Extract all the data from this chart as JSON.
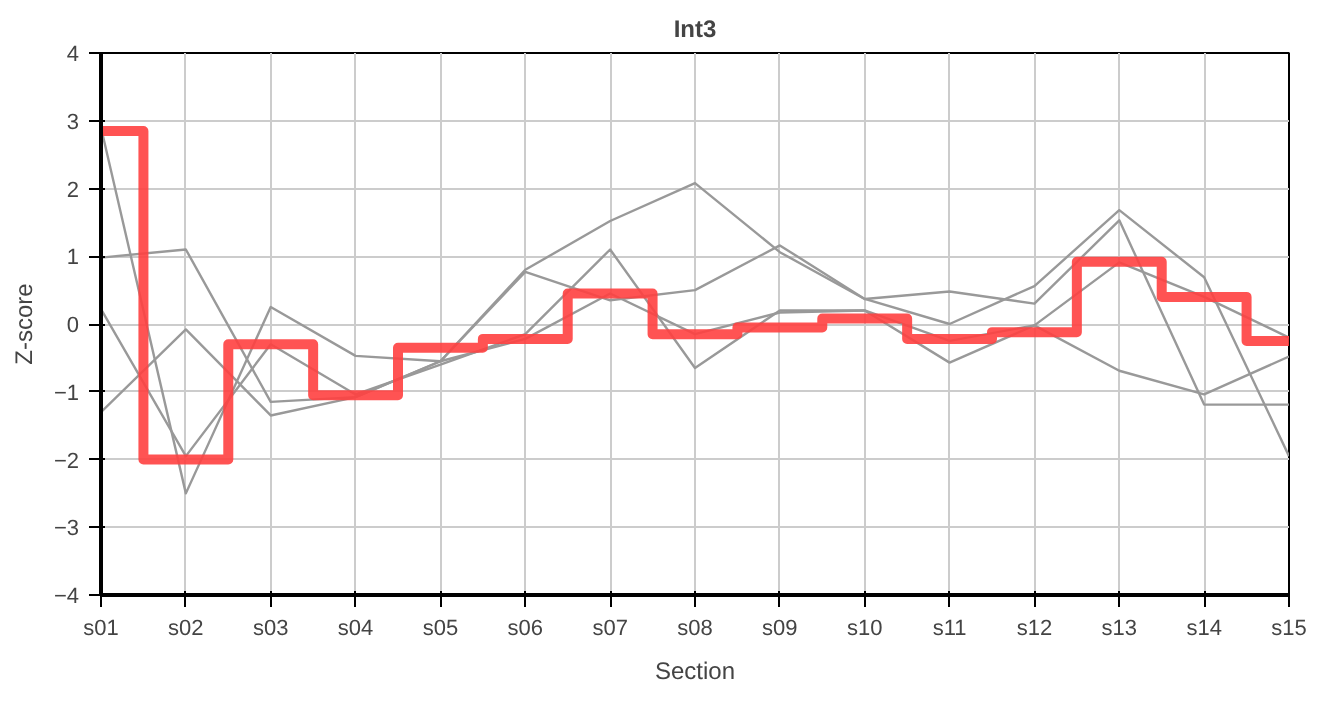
{
  "chart_data": {
    "type": "line",
    "title": "Int3",
    "xlabel": "Section",
    "ylabel": "Z-score",
    "categories": [
      "s01",
      "s02",
      "s03",
      "s04",
      "s05",
      "s06",
      "s07",
      "s08",
      "s09",
      "s10",
      "s11",
      "s12",
      "s13",
      "s14",
      "s15"
    ],
    "ylim": [
      -4,
      4
    ],
    "yticks": [
      -4,
      -3,
      -2,
      -1,
      0,
      1,
      2,
      3,
      4
    ],
    "grid": true,
    "series": [
      {
        "color": "#999999",
        "values": [
          0.98,
          1.1,
          -1.15,
          -1.08,
          -0.55,
          0.8,
          1.52,
          2.08,
          1.06,
          0.37,
          0.0,
          0.56,
          1.68,
          0.69,
          -1.95
        ]
      },
      {
        "color": "#999999",
        "values": [
          2.9,
          -2.5,
          0.25,
          -0.47,
          -0.55,
          0.77,
          0.35,
          0.5,
          1.16,
          0.37,
          0.48,
          0.3,
          1.53,
          -1.19,
          -1.19
        ]
      },
      {
        "color": "#999999",
        "values": [
          0.22,
          -1.95,
          -0.3,
          -1.04,
          -0.6,
          -0.15,
          1.1,
          -0.65,
          0.2,
          0.2,
          -0.57,
          -0.02,
          0.91,
          0.4,
          -0.2
        ]
      },
      {
        "color": "#999999",
        "values": [
          -1.3,
          -0.08,
          -1.35,
          -1.08,
          -0.55,
          -0.22,
          0.45,
          -0.15,
          0.17,
          0.2,
          -0.25,
          -0.02,
          -0.69,
          -1.04,
          -0.48
        ]
      },
      {
        "type": "step",
        "color": "#ff4040",
        "values": [
          2.85,
          -2.0,
          -0.3,
          -1.05,
          -0.35,
          -0.22,
          0.45,
          -0.15,
          -0.05,
          0.08,
          -0.22,
          -0.12,
          0.92,
          0.4,
          -0.25
        ]
      }
    ]
  }
}
